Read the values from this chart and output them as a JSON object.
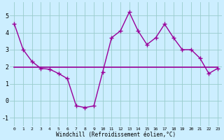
{
  "x": [
    0,
    1,
    2,
    3,
    4,
    5,
    6,
    7,
    8,
    9,
    10,
    11,
    12,
    13,
    14,
    15,
    16,
    17,
    18,
    19,
    20,
    21,
    22,
    23
  ],
  "y_curve": [
    4.5,
    3.0,
    2.3,
    1.9,
    1.85,
    1.6,
    1.3,
    -0.3,
    -0.4,
    -0.3,
    1.7,
    3.7,
    4.1,
    5.2,
    4.1,
    3.3,
    3.7,
    4.5,
    3.7,
    3.0,
    3.0,
    2.5,
    1.6,
    1.9
  ],
  "y_trend": [
    1.95,
    1.95,
    1.95,
    1.95,
    1.95,
    1.95,
    1.95,
    1.95,
    1.95,
    1.95,
    1.95,
    1.95,
    1.95,
    1.95,
    1.95,
    1.95,
    1.95,
    1.95,
    1.95,
    1.95,
    1.95,
    1.95,
    1.95,
    1.95
  ],
  "line_color": "#990099",
  "bg_color": "#cceeff",
  "grid_color": "#99cccc",
  "xlabel": "Windchill (Refroidissement éolien,°C)",
  "xlim": [
    -0.5,
    23.5
  ],
  "ylim": [
    -1.5,
    5.8
  ],
  "yticks": [
    -1,
    0,
    1,
    2,
    3,
    4,
    5
  ],
  "xticks": [
    0,
    1,
    2,
    3,
    4,
    5,
    6,
    7,
    8,
    9,
    10,
    11,
    12,
    13,
    14,
    15,
    16,
    17,
    18,
    19,
    20,
    21,
    22,
    23
  ],
  "fig_width": 3.2,
  "fig_height": 2.0,
  "dpi": 100
}
